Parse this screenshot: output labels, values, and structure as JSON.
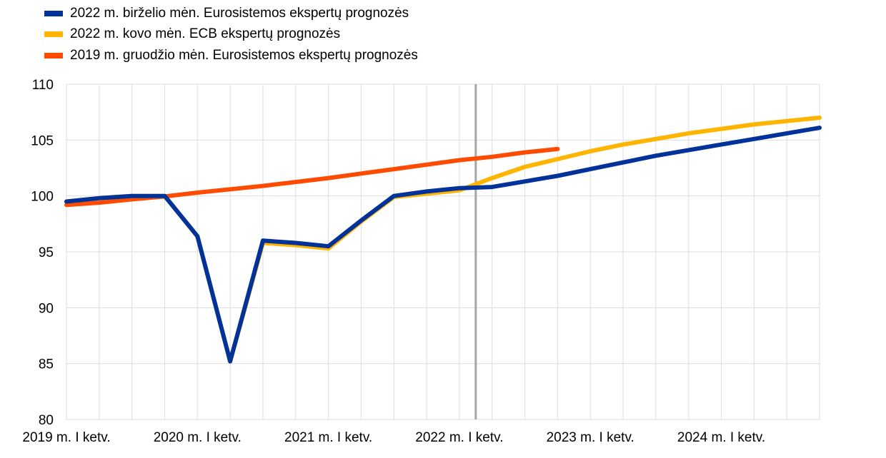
{
  "chart_data": {
    "type": "line",
    "title": "",
    "xlabel": "",
    "ylabel": "",
    "ylim": [
      80,
      110
    ],
    "yticks": [
      80,
      85,
      90,
      95,
      100,
      105,
      110
    ],
    "x_categories": [
      "2019Q1",
      "2019Q2",
      "2019Q3",
      "2019Q4",
      "2020Q1",
      "2020Q2",
      "2020Q3",
      "2020Q4",
      "2021Q1",
      "2021Q2",
      "2021Q3",
      "2021Q4",
      "2022Q1",
      "2022Q2",
      "2022Q3",
      "2022Q4",
      "2023Q1",
      "2023Q2",
      "2023Q3",
      "2023Q4",
      "2024Q1",
      "2024Q2",
      "2024Q3",
      "2024Q4"
    ],
    "xtick_labels": [
      {
        "index": 0,
        "label": "2019 m. I ketv."
      },
      {
        "index": 4,
        "label": "2020 m. I ketv."
      },
      {
        "index": 8,
        "label": "2021 m. I ketv."
      },
      {
        "index": 12,
        "label": "2022 m. I ketv."
      },
      {
        "index": 16,
        "label": "2023 m. I ketv."
      },
      {
        "index": 20,
        "label": "2024 m. I ketv."
      }
    ],
    "vertical_marker_index": 12.5,
    "grid": true,
    "legend_position": "top-left",
    "series": [
      {
        "name": "2019 m. gruodžio mėn. Eurosistemos ekspertų prognozės",
        "color": "#ff4b00",
        "values": [
          99.2,
          99.4,
          99.7,
          99.95,
          100.3,
          100.6,
          100.9,
          101.25,
          101.6,
          102.0,
          102.4,
          102.8,
          103.2,
          103.5,
          103.9,
          104.2,
          null,
          null,
          null,
          null,
          null,
          null,
          null,
          null
        ]
      },
      {
        "name": "2022 m. kovo mėn. ECB ekspertų prognozės",
        "color": "#ffb400",
        "values": [
          99.5,
          99.8,
          100.0,
          100.0,
          96.4,
          85.2,
          95.8,
          95.6,
          95.3,
          97.7,
          99.9,
          100.2,
          100.5,
          101.6,
          102.6,
          103.3,
          104.0,
          104.6,
          105.1,
          105.6,
          106.0,
          106.4,
          106.7,
          107.0
        ]
      },
      {
        "name": "2022 m. birželio mėn. Eurosistemos ekspertų prognozės",
        "color": "#003299",
        "values": [
          99.5,
          99.8,
          100.0,
          100.0,
          96.4,
          85.2,
          96.0,
          95.8,
          95.5,
          97.8,
          100.0,
          100.4,
          100.7,
          100.8,
          101.3,
          101.8,
          102.4,
          103.0,
          103.6,
          104.1,
          104.6,
          105.1,
          105.6,
          106.1
        ]
      }
    ]
  },
  "legend": [
    {
      "label": "2022 m. birželio mėn. Eurosistemos ekspertų prognozės",
      "color": "#003299"
    },
    {
      "label": "2022 m. kovo mėn. ECB ekspertų prognozės",
      "color": "#ffb400"
    },
    {
      "label": "2019 m. gruodžio mėn. Eurosistemos ekspertų prognozės",
      "color": "#ff4b00"
    }
  ]
}
